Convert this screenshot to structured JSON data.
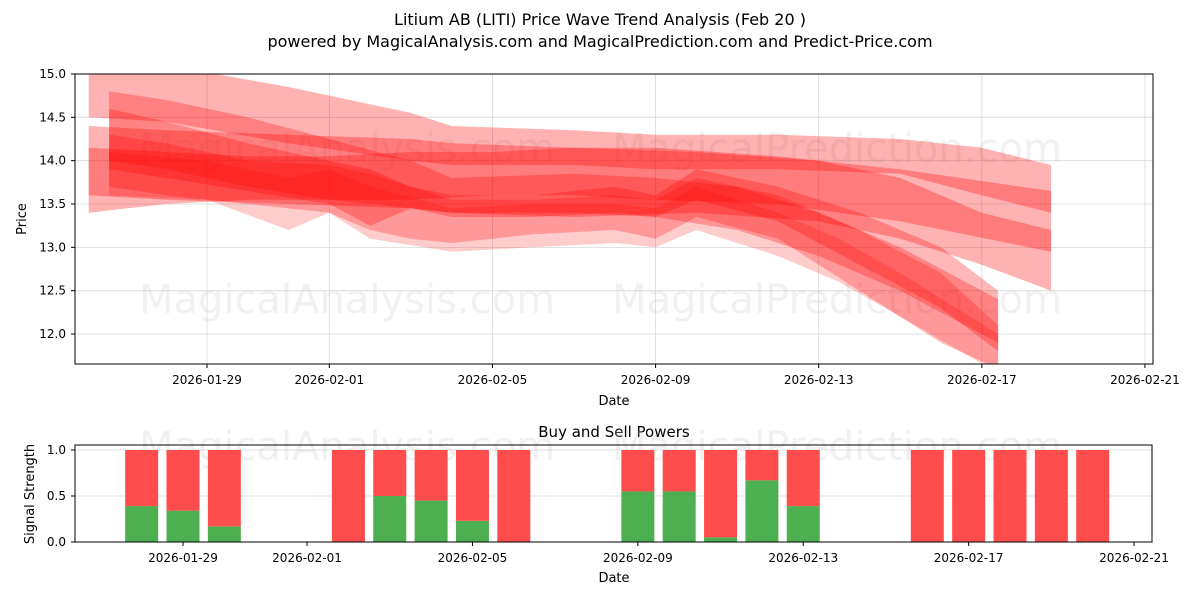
{
  "title": "Litium AB (LITI) Price Wave Trend Analysis (Feb 20 )",
  "subtitle": "powered by MagicalAnalysis.com and MagicalPrediction.com and Predict-Price.com",
  "watermarks": [
    "MagicalAnalysis.com",
    "MagicalPrediction.com"
  ],
  "colors": {
    "band": "#ff0000",
    "buy": "#4caf50",
    "sell": "#ff4d4d",
    "grid": "#d9d9d9"
  },
  "chart_data": [
    {
      "type": "area",
      "title": "Litium AB (LITI) Price Wave Trend Analysis (Feb 20 )",
      "xlabel": "Date",
      "ylabel": "Price",
      "ylim": [
        11.65,
        15.0
      ],
      "yticks": [
        "12.0",
        "12.5",
        "13.0",
        "13.5",
        "14.0",
        "14.5",
        "15.0"
      ],
      "xticks": [
        "2026-01-29",
        "2026-02-01",
        "2026-02-05",
        "2026-02-09",
        "2026-02-13",
        "2026-02-17",
        "2026-02-21"
      ],
      "grid": true,
      "note": "Overlapping translucent red wave bands; x is day offset from 2026-01-29, upper/lower are price bounds",
      "bands": [
        {
          "opacity": 0.3,
          "points": [
            [
              -2.9,
              15.2,
              14.5
            ],
            [
              -1,
              15.1,
              14.45
            ],
            [
              2,
              14.85,
              14.2
            ],
            [
              5,
              14.55,
              14.0
            ],
            [
              6,
              14.4,
              13.95
            ],
            [
              9,
              14.35,
              13.95
            ],
            [
              11,
              14.3,
              13.9
            ],
            [
              14,
              14.3,
              13.9
            ],
            [
              17,
              14.25,
              13.85
            ],
            [
              19,
              14.15,
              13.6
            ],
            [
              20.7,
              13.95,
              13.4
            ]
          ]
        },
        {
          "opacity": 0.3,
          "points": [
            [
              -2.9,
              14.4,
              13.6
            ],
            [
              -1,
              14.35,
              13.55
            ],
            [
              2,
              14.3,
              13.5
            ],
            [
              5,
              14.25,
              13.45
            ],
            [
              6,
              14.2,
              13.4
            ],
            [
              9,
              14.15,
              13.35
            ],
            [
              12,
              14.1,
              13.4
            ],
            [
              15,
              14.0,
              13.3
            ],
            [
              17,
              13.8,
              13.1
            ],
            [
              19,
              13.4,
              12.8
            ],
            [
              20.7,
              13.2,
              12.5
            ]
          ]
        },
        {
          "opacity": 0.3,
          "points": [
            [
              -2.9,
              14.15,
              13.4
            ],
            [
              -1,
              14.1,
              13.5
            ],
            [
              1,
              14.05,
              13.55
            ],
            [
              3,
              14.05,
              13.55
            ],
            [
              5,
              14.1,
              13.55
            ],
            [
              7,
              14.1,
              13.6
            ],
            [
              9,
              14.15,
              13.6
            ],
            [
              11,
              14.15,
              13.55
            ],
            [
              14,
              14.05,
              13.5
            ],
            [
              17,
              13.9,
              13.3
            ],
            [
              20.7,
              13.65,
              12.95
            ]
          ]
        },
        {
          "opacity": 0.28,
          "points": [
            [
              -2.4,
              14.8,
              14.0
            ],
            [
              -1,
              14.7,
              13.9
            ],
            [
              1,
              14.5,
              13.7
            ],
            [
              3,
              14.25,
              13.55
            ],
            [
              5,
              14.0,
              13.45
            ],
            [
              6,
              13.8,
              13.4
            ],
            [
              9,
              13.85,
              13.4
            ],
            [
              11,
              13.8,
              13.35
            ],
            [
              13,
              13.7,
              13.2
            ],
            [
              15,
              13.4,
              12.9
            ],
            [
              17,
              13.0,
              12.5
            ],
            [
              19.4,
              12.4,
              11.9
            ]
          ]
        },
        {
          "opacity": 0.28,
          "points": [
            [
              -2.4,
              14.6,
              13.9
            ],
            [
              -1,
              14.45,
              13.8
            ],
            [
              1,
              14.2,
              13.65
            ],
            [
              3,
              14.0,
              13.5
            ],
            [
              4,
              13.9,
              13.25
            ],
            [
              5,
              13.7,
              13.45
            ],
            [
              6,
              13.6,
              13.35
            ],
            [
              8,
              13.6,
              13.35
            ],
            [
              10,
              13.7,
              13.4
            ],
            [
              11,
              13.6,
              13.35
            ],
            [
              12,
              13.9,
              13.55
            ],
            [
              14,
              13.7,
              13.3
            ],
            [
              16,
              13.4,
              12.8
            ],
            [
              18,
              13.0,
              12.3
            ],
            [
              19.4,
              12.5,
              11.8
            ]
          ]
        },
        {
          "opacity": 0.25,
          "points": [
            [
              -2.4,
              14.3,
              13.7
            ],
            [
              -1,
              14.2,
              13.6
            ],
            [
              1,
              14.0,
              13.5
            ],
            [
              3,
              13.95,
              13.4
            ],
            [
              4,
              13.85,
              13.2
            ],
            [
              5,
              13.7,
              13.1
            ],
            [
              6,
              13.55,
              13.05
            ],
            [
              8,
              13.55,
              13.15
            ],
            [
              10,
              13.6,
              13.2
            ],
            [
              11,
              13.55,
              13.1
            ],
            [
              12,
              13.8,
              13.35
            ],
            [
              14,
              13.6,
              13.1
            ],
            [
              16,
              13.2,
              12.5
            ],
            [
              18,
              12.7,
              11.9
            ],
            [
              19.4,
              12.1,
              11.6
            ]
          ]
        },
        {
          "opacity": 0.2,
          "points": [
            [
              -2.4,
              14.1,
              13.6
            ],
            [
              0,
              14.0,
              13.55
            ],
            [
              2,
              13.8,
              13.2
            ],
            [
              3,
              13.9,
              13.4
            ],
            [
              4,
              13.7,
              13.1
            ],
            [
              6,
              13.45,
              12.95
            ],
            [
              8,
              13.5,
              13.0
            ],
            [
              10,
              13.5,
              13.05
            ],
            [
              11,
              13.45,
              13.0
            ],
            [
              12,
              13.7,
              13.2
            ],
            [
              14,
              13.4,
              12.9
            ],
            [
              15.5,
              13.1,
              12.6
            ],
            [
              17,
              12.7,
              12.2
            ],
            [
              19.4,
              12.0,
              11.55
            ]
          ]
        }
      ]
    },
    {
      "type": "bar",
      "title": "Buy and Sell Powers",
      "xlabel": "Date",
      "ylabel": "Signal Strength",
      "ylim": [
        0,
        1.05
      ],
      "yticks": [
        "0.0",
        "0.5",
        "1.0"
      ],
      "xticks": [
        "2026-01-29",
        "2026-02-01",
        "2026-02-05",
        "2026-02-09",
        "2026-02-13",
        "2026-02-17",
        "2026-02-21"
      ],
      "stacked": true,
      "categories": [
        "2026-01-28",
        "2026-01-29",
        "2026-01-30",
        "2026-02-02",
        "2026-02-03",
        "2026-02-04",
        "2026-02-05",
        "2026-02-06",
        "2026-02-09",
        "2026-02-10",
        "2026-02-11",
        "2026-02-12",
        "2026-02-13",
        "2026-02-16",
        "2026-02-17",
        "2026-02-18",
        "2026-02-19",
        "2026-02-20"
      ],
      "day_offsets": [
        -1,
        0,
        1,
        4,
        5,
        6,
        7,
        8,
        11,
        12,
        13,
        14,
        15,
        18,
        19,
        20,
        21,
        22
      ],
      "series": [
        {
          "name": "Buy",
          "color": "#4caf50",
          "values": [
            0.39,
            0.34,
            0.17,
            0.0,
            0.5,
            0.45,
            0.23,
            0.0,
            0.55,
            0.55,
            0.05,
            0.67,
            0.39,
            0.0,
            0.0,
            0.0,
            0.0,
            0.0
          ]
        },
        {
          "name": "Sell",
          "color": "#ff4d4d",
          "values": [
            0.61,
            0.66,
            0.83,
            1.0,
            0.5,
            0.55,
            0.77,
            1.0,
            0.45,
            0.45,
            0.95,
            0.33,
            0.61,
            1.0,
            1.0,
            1.0,
            1.0,
            1.0
          ]
        }
      ]
    }
  ]
}
